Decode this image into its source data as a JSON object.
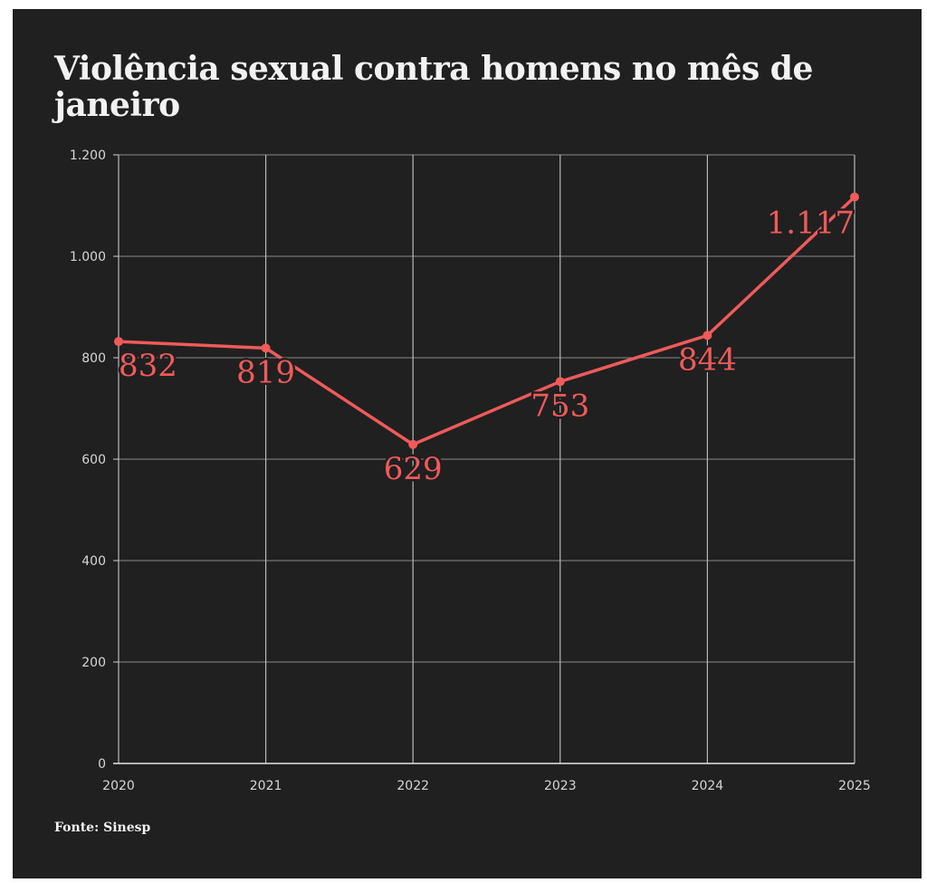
{
  "header": {
    "title": "Violência sexual contra homens no mês de janeiro"
  },
  "footer": {
    "source": "Fonte: Sinesp"
  },
  "colors": {
    "background": "#202020",
    "line": "#f05a5a",
    "grid": "#8a8a8a",
    "text": "#f2f2f2"
  },
  "chart_data": {
    "type": "line",
    "title": "Violência sexual contra homens no mês de janeiro",
    "xlabel": "",
    "ylabel": "",
    "x": [
      2020,
      2021,
      2022,
      2023,
      2024,
      2025
    ],
    "x_tick_labels": [
      "2020",
      "2021",
      "2022",
      "2023",
      "2024",
      "2025"
    ],
    "ylim": [
      0,
      1200
    ],
    "y_ticks": [
      0,
      200,
      400,
      600,
      800,
      1000,
      1200
    ],
    "y_tick_labels": [
      "0",
      "200",
      "400",
      "600",
      "800",
      "1.000",
      "1.200"
    ],
    "grid": true,
    "series": [
      {
        "values": [
          832,
          819,
          629,
          753,
          844,
          1117
        ],
        "data_labels": [
          "832",
          "819",
          "629",
          "753",
          "844",
          "1.117"
        ]
      }
    ]
  }
}
